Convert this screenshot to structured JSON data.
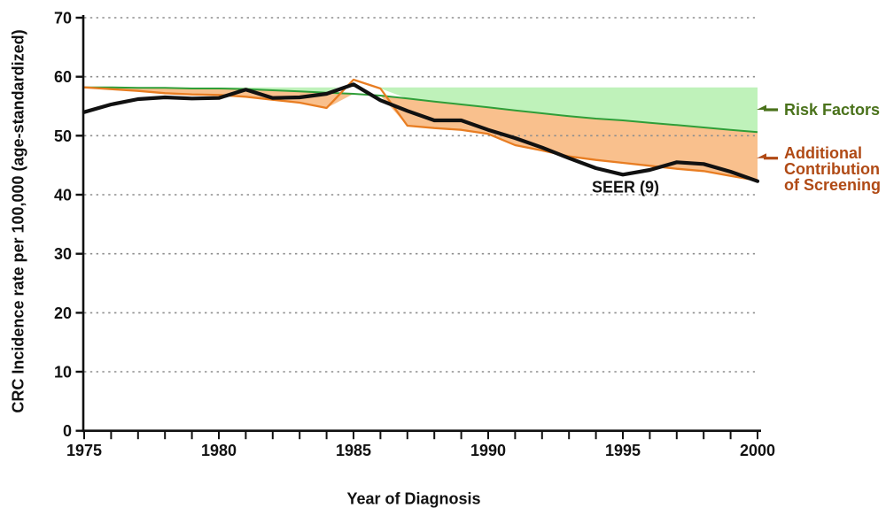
{
  "figure": {
    "y_axis_title": "CRC Incidence rate per 100,000 (age-standardized)",
    "x_axis_title": "Year of Diagnosis"
  },
  "annotations": {
    "seer_label": "SEER (9)",
    "seer_label_anchor": {
      "year": 1995.1,
      "value": 41.2
    },
    "risk_factors": {
      "label": "Risk Factors",
      "color": "#4a721b"
    },
    "screening": {
      "lines": [
        "Additional",
        "Contribution",
        "of Screening"
      ],
      "color": "#b04a15"
    }
  },
  "chart_data": {
    "type": "line",
    "title": "",
    "xlabel": "Year of Diagnosis",
    "ylabel": "CRC Incidence rate per 100,000 (age-standardized)",
    "xlim": [
      1975,
      2000
    ],
    "ylim": [
      0,
      70
    ],
    "x_ticks_labeled": [
      1975,
      1980,
      1985,
      1990,
      1995,
      2000
    ],
    "x_tick_minor_step": 1,
    "y_ticks": [
      0,
      10,
      20,
      30,
      40,
      50,
      60,
      70
    ],
    "grid": "horizontal dotted gridlines at 10..70",
    "grid_color": "#8e8e8e",
    "baseline_value": 58.2,
    "x": [
      1975,
      1976,
      1977,
      1978,
      1979,
      1980,
      1981,
      1982,
      1983,
      1984,
      1985,
      1986,
      1987,
      1988,
      1989,
      1990,
      1991,
      1992,
      1993,
      1994,
      1995,
      1996,
      1997,
      1998,
      1999,
      2000
    ],
    "series": [
      {
        "name": "SEER (9) observed incidence",
        "color": "#111111",
        "values": [
          54.0,
          55.3,
          56.2,
          56.5,
          56.3,
          56.4,
          57.8,
          56.4,
          56.5,
          57.1,
          58.7,
          56.0,
          54.2,
          52.6,
          52.6,
          51.0,
          49.6,
          48.0,
          46.2,
          44.5,
          43.4,
          44.2,
          45.5,
          45.2,
          43.9,
          42.3
        ]
      },
      {
        "name": "Modeled: risk factors only",
        "color": "#2f9e38",
        "fill": "#bff2ba",
        "values": [
          58.2,
          58.2,
          58.1,
          58.1,
          58.0,
          58.0,
          57.9,
          57.7,
          57.5,
          57.3,
          57.1,
          56.8,
          56.3,
          55.8,
          55.3,
          54.8,
          54.3,
          53.8,
          53.3,
          52.9,
          52.6,
          52.2,
          51.8,
          51.4,
          51.0,
          50.6
        ]
      },
      {
        "name": "Modeled: risk factors plus screening",
        "color": "#e87d22",
        "fill": "#f9c08d",
        "values": [
          58.2,
          57.9,
          57.6,
          57.2,
          57.0,
          56.9,
          56.6,
          56.1,
          55.6,
          54.7,
          59.5,
          58.0,
          51.7,
          51.3,
          51.0,
          50.3,
          48.4,
          47.5,
          46.5,
          45.9,
          45.4,
          44.9,
          44.4,
          44.0,
          43.2,
          42.4
        ]
      }
    ],
    "legend_position": "right-side arrow annotations"
  }
}
